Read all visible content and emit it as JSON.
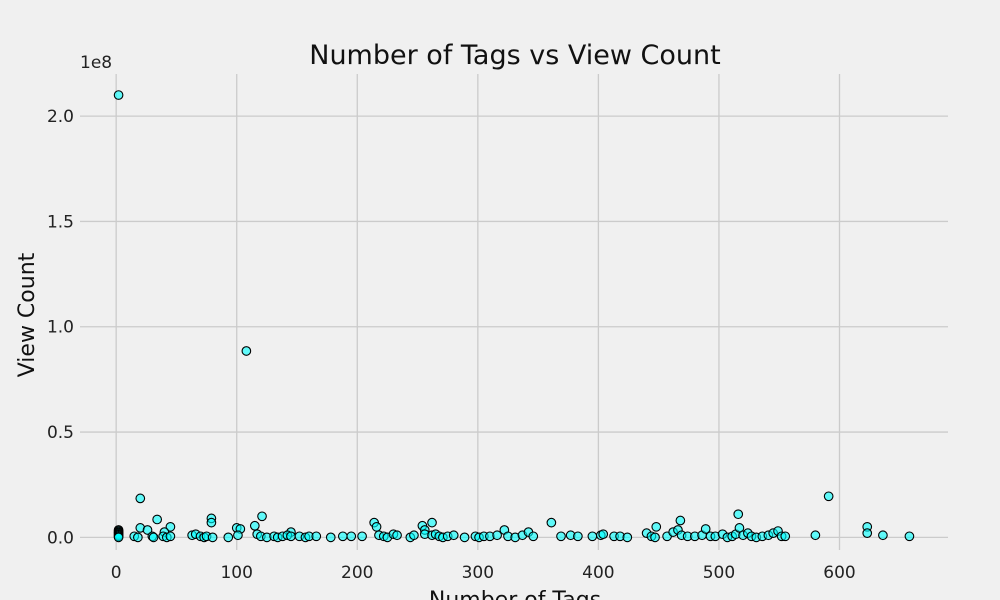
{
  "chart_data": {
    "type": "scatter",
    "title": "Number of Tags vs View Count",
    "xlabel": "Number of Tags",
    "ylabel": "View Count",
    "y_offset_label": "1e8",
    "xlim": [
      -30,
      690
    ],
    "ylim": [
      -0.06,
      2.2
    ],
    "xticks": [
      0,
      100,
      200,
      300,
      400,
      500,
      600
    ],
    "xtick_labels": [
      "0",
      "100",
      "200",
      "300",
      "400",
      "500",
      "600"
    ],
    "yticks": [
      0.0,
      0.5,
      1.0,
      1.5,
      2.0
    ],
    "ytick_labels": [
      "0.0",
      "0.5",
      "1.0",
      "1.5",
      "2.0"
    ],
    "y_unit_multiplier": 100000000,
    "grid": true,
    "marker_color": "#00ffff",
    "marker_edge_color": "#000000",
    "points": [
      [
        2,
        2.1
      ],
      [
        108,
        0.885
      ],
      [
        20,
        0.185
      ],
      [
        591,
        0.195
      ],
      [
        121,
        0.1
      ],
      [
        516,
        0.11
      ],
      [
        79,
        0.09
      ],
      [
        79,
        0.07
      ],
      [
        34,
        0.085
      ],
      [
        214,
        0.07
      ],
      [
        216,
        0.05
      ],
      [
        262,
        0.07
      ],
      [
        361,
        0.07
      ],
      [
        468,
        0.08
      ],
      [
        254,
        0.055
      ],
      [
        448,
        0.05
      ],
      [
        623,
        0.05
      ],
      [
        115,
        0.055
      ],
      [
        45,
        0.05
      ],
      [
        100,
        0.045
      ],
      [
        20,
        0.045
      ],
      [
        256,
        0.035
      ],
      [
        26,
        0.035
      ],
      [
        103,
        0.04
      ],
      [
        40,
        0.025
      ],
      [
        145,
        0.025
      ],
      [
        2,
        0.035
      ],
      [
        2,
        0.03
      ],
      [
        2,
        0.025
      ],
      [
        2,
        0.02
      ],
      [
        2,
        0.015
      ],
      [
        2,
        0.01
      ],
      [
        2,
        0.005
      ],
      [
        2,
        0.0
      ],
      [
        15,
        0.005
      ],
      [
        18,
        0.0
      ],
      [
        30,
        0.005
      ],
      [
        31,
        0.0
      ],
      [
        39,
        0.005
      ],
      [
        42,
        0.0
      ],
      [
        45,
        0.005
      ],
      [
        63,
        0.01
      ],
      [
        66,
        0.015
      ],
      [
        70,
        0.005
      ],
      [
        73,
        0.0
      ],
      [
        75,
        0.005
      ],
      [
        80,
        0.0
      ],
      [
        93,
        0.0
      ],
      [
        101,
        0.01
      ],
      [
        117,
        0.015
      ],
      [
        120,
        0.005
      ],
      [
        125,
        0.0
      ],
      [
        131,
        0.005
      ],
      [
        134,
        0.0
      ],
      [
        138,
        0.005
      ],
      [
        142,
        0.01
      ],
      [
        145,
        0.005
      ],
      [
        152,
        0.005
      ],
      [
        157,
        0.0
      ],
      [
        160,
        0.005
      ],
      [
        166,
        0.005
      ],
      [
        178,
        0.0
      ],
      [
        188,
        0.005
      ],
      [
        195,
        0.005
      ],
      [
        204,
        0.005
      ],
      [
        218,
        0.01
      ],
      [
        222,
        0.005
      ],
      [
        225,
        0.0
      ],
      [
        230,
        0.015
      ],
      [
        233,
        0.01
      ],
      [
        244,
        0.0
      ],
      [
        247,
        0.01
      ],
      [
        256,
        0.015
      ],
      [
        262,
        0.01
      ],
      [
        265,
        0.015
      ],
      [
        268,
        0.005
      ],
      [
        271,
        0.0
      ],
      [
        275,
        0.005
      ],
      [
        280,
        0.01
      ],
      [
        289,
        0.0
      ],
      [
        298,
        0.005
      ],
      [
        301,
        0.0
      ],
      [
        305,
        0.005
      ],
      [
        310,
        0.005
      ],
      [
        316,
        0.01
      ],
      [
        322,
        0.035
      ],
      [
        325,
        0.005
      ],
      [
        331,
        0.0
      ],
      [
        337,
        0.01
      ],
      [
        342,
        0.025
      ],
      [
        346,
        0.005
      ],
      [
        369,
        0.005
      ],
      [
        377,
        0.01
      ],
      [
        383,
        0.005
      ],
      [
        395,
        0.005
      ],
      [
        402,
        0.01
      ],
      [
        404,
        0.015
      ],
      [
        413,
        0.005
      ],
      [
        418,
        0.005
      ],
      [
        424,
        0.0
      ],
      [
        440,
        0.02
      ],
      [
        444,
        0.005
      ],
      [
        447,
        0.0
      ],
      [
        457,
        0.005
      ],
      [
        462,
        0.025
      ],
      [
        466,
        0.035
      ],
      [
        469,
        0.01
      ],
      [
        474,
        0.005
      ],
      [
        480,
        0.005
      ],
      [
        486,
        0.01
      ],
      [
        489,
        0.04
      ],
      [
        493,
        0.005
      ],
      [
        497,
        0.005
      ],
      [
        503,
        0.015
      ],
      [
        507,
        0.0
      ],
      [
        511,
        0.005
      ],
      [
        514,
        0.015
      ],
      [
        517,
        0.045
      ],
      [
        520,
        0.01
      ],
      [
        524,
        0.02
      ],
      [
        527,
        0.005
      ],
      [
        531,
        0.0
      ],
      [
        536,
        0.005
      ],
      [
        541,
        0.01
      ],
      [
        545,
        0.02
      ],
      [
        549,
        0.03
      ],
      [
        552,
        0.005
      ],
      [
        555,
        0.005
      ],
      [
        580,
        0.01
      ],
      [
        623,
        0.02
      ],
      [
        636,
        0.01
      ],
      [
        658,
        0.005
      ]
    ]
  }
}
